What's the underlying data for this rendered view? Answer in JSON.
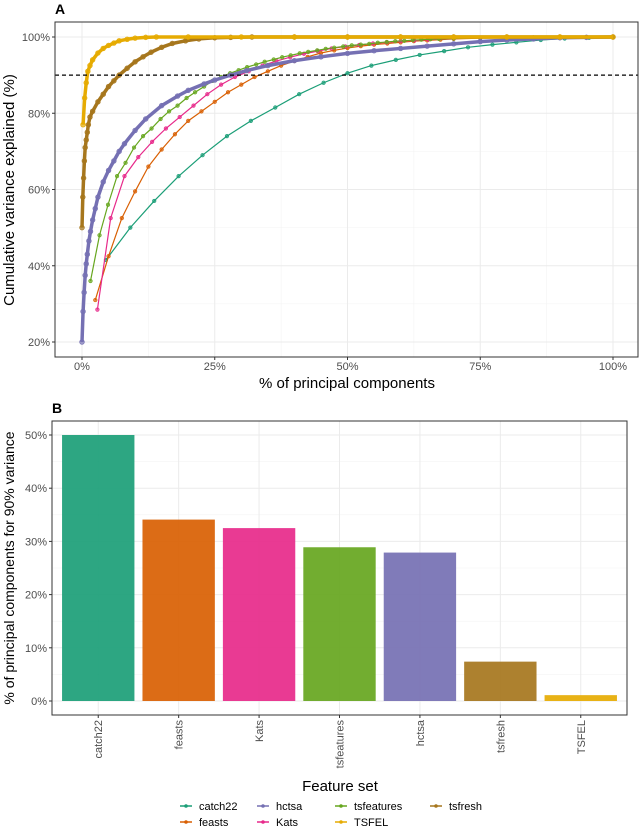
{
  "colors": {
    "catch22": "#1B9E77",
    "feasts": "#D95F02",
    "hctsa": "#7570B3",
    "Kats": "#E7298A",
    "tsfeatures": "#66A61E",
    "TSFEL": "#E6AB02",
    "tsfresh": "#A6761D"
  },
  "legend": {
    "entries": [
      "catch22",
      "feasts",
      "hctsa",
      "Kats",
      "tsfeatures",
      "TSFEL",
      "tsfresh"
    ]
  },
  "chart_data": [
    {
      "panel": "A",
      "type": "line",
      "xlabel": "% of principal components",
      "ylabel": "Cumulative variance explained (%)",
      "xlim": [
        0,
        100
      ],
      "ylim": [
        18,
        102
      ],
      "xticks": [
        "0%",
        "25%",
        "50%",
        "75%",
        "100%"
      ],
      "xtick_values": [
        0,
        25,
        50,
        75,
        100
      ],
      "yticks": [
        "20%",
        "40%",
        "60%",
        "80%",
        "100%"
      ],
      "ytick_values": [
        20,
        40,
        60,
        80,
        100
      ],
      "reference_line": {
        "y": 90,
        "style": "dashed"
      },
      "grid": true,
      "series": [
        {
          "name": "catch22",
          "points": [
            [
              4.5,
              41.5
            ],
            [
              9.1,
              50
            ],
            [
              13.6,
              57
            ],
            [
              18.2,
              63.5
            ],
            [
              22.7,
              69
            ],
            [
              27.3,
              74
            ],
            [
              31.8,
              78
            ],
            [
              36.4,
              81.5
            ],
            [
              40.9,
              85
            ],
            [
              45.5,
              88
            ],
            [
              50,
              90.5
            ],
            [
              54.5,
              92.5
            ],
            [
              59.1,
              94
            ],
            [
              63.6,
              95.3
            ],
            [
              68.2,
              96.3
            ],
            [
              72.7,
              97.3
            ],
            [
              77.3,
              98
            ],
            [
              81.8,
              98.6
            ],
            [
              86.4,
              99.2
            ],
            [
              90.9,
              99.6
            ],
            [
              95.5,
              99.8
            ],
            [
              100,
              100
            ]
          ]
        },
        {
          "name": "feasts",
          "points": [
            [
              2.5,
              31
            ],
            [
              5,
              42.5
            ],
            [
              7.5,
              52.5
            ],
            [
              10,
              59.5
            ],
            [
              12.5,
              66
            ],
            [
              15,
              70.5
            ],
            [
              17.5,
              74.5
            ],
            [
              20,
              78
            ],
            [
              22.5,
              80.5
            ],
            [
              25,
              83
            ],
            [
              27.5,
              85.5
            ],
            [
              30,
              87.5
            ],
            [
              32.5,
              89.5
            ],
            [
              35,
              91
            ],
            [
              37.5,
              92.5
            ],
            [
              40,
              93.7
            ],
            [
              42.5,
              94.8
            ],
            [
              45,
              95.8
            ],
            [
              47.5,
              96.5
            ],
            [
              50,
              97.1
            ],
            [
              52.5,
              97.6
            ],
            [
              55,
              98
            ],
            [
              57.5,
              98.3
            ],
            [
              60,
              98.6
            ],
            [
              62.5,
              98.9
            ],
            [
              65,
              99.1
            ],
            [
              67.5,
              99.3
            ],
            [
              70,
              99.5
            ],
            [
              75,
              99.7
            ],
            [
              80,
              99.8
            ],
            [
              85,
              99.9
            ],
            [
              90,
              100
            ],
            [
              95,
              100
            ],
            [
              100,
              100
            ]
          ]
        },
        {
          "name": "Kats",
          "points": [
            [
              2.9,
              28.5
            ],
            [
              5.4,
              52.5
            ],
            [
              8,
              63.5
            ],
            [
              10.6,
              68.5
            ],
            [
              13.2,
              72.5
            ],
            [
              15.8,
              76
            ],
            [
              18.4,
              79
            ],
            [
              21,
              82
            ],
            [
              23.6,
              85
            ],
            [
              26.2,
              87.5
            ],
            [
              28.8,
              89.5
            ],
            [
              31.4,
              91
            ],
            [
              34,
              92.5
            ],
            [
              36.6,
              93.7
            ],
            [
              39.2,
              94.7
            ],
            [
              41.8,
              95.6
            ],
            [
              44.4,
              96.3
            ],
            [
              47,
              97
            ],
            [
              49.6,
              97.5
            ],
            [
              52.2,
              97.9
            ],
            [
              54.8,
              98.3
            ],
            [
              57.4,
              98.6
            ],
            [
              60,
              98.9
            ],
            [
              62.6,
              99.1
            ],
            [
              65.2,
              99.3
            ],
            [
              70,
              99.6
            ],
            [
              75,
              99.8
            ],
            [
              80,
              99.9
            ],
            [
              90,
              100
            ],
            [
              100,
              100
            ]
          ]
        },
        {
          "name": "tsfeatures",
          "points": [
            [
              1.6,
              36
            ],
            [
              3.3,
              48
            ],
            [
              4.9,
              56
            ],
            [
              6.6,
              63.5
            ],
            [
              8.2,
              67
            ],
            [
              9.8,
              71
            ],
            [
              11.5,
              74
            ],
            [
              13.1,
              76
            ],
            [
              14.8,
              78.5
            ],
            [
              16.4,
              80.5
            ],
            [
              18,
              82
            ],
            [
              19.7,
              84
            ],
            [
              21.3,
              85.5
            ],
            [
              23,
              87
            ],
            [
              24.6,
              88.5
            ],
            [
              26.2,
              89.5
            ],
            [
              27.9,
              90.5
            ],
            [
              29.5,
              91.3
            ],
            [
              31.1,
              92.1
            ],
            [
              32.8,
              92.8
            ],
            [
              34.4,
              93.5
            ],
            [
              36.1,
              94.1
            ],
            [
              37.7,
              94.7
            ],
            [
              39.3,
              95.2
            ],
            [
              41,
              95.7
            ],
            [
              42.6,
              96.1
            ],
            [
              44.3,
              96.5
            ],
            [
              45.9,
              96.9
            ],
            [
              47.5,
              97.2
            ],
            [
              49.2,
              97.5
            ],
            [
              50.8,
              97.8
            ],
            [
              52.5,
              98
            ],
            [
              54.1,
              98.2
            ],
            [
              55.7,
              98.5
            ],
            [
              57.4,
              98.7
            ],
            [
              59,
              98.9
            ],
            [
              60.7,
              99
            ],
            [
              62.3,
              99.2
            ],
            [
              63.9,
              99.3
            ],
            [
              65.6,
              99.4
            ],
            [
              67.2,
              99.5
            ],
            [
              70,
              99.6
            ],
            [
              75,
              99.8
            ],
            [
              80,
              99.9
            ],
            [
              90,
              100
            ],
            [
              100,
              100
            ]
          ]
        },
        {
          "name": "hctsa",
          "points": [
            [
              0,
              20
            ],
            [
              0.2,
              28
            ],
            [
              0.4,
              33
            ],
            [
              0.6,
              37.5
            ],
            [
              0.8,
              40.5
            ],
            [
              1,
              43
            ],
            [
              1.3,
              46.5
            ],
            [
              1.6,
              49
            ],
            [
              2,
              52
            ],
            [
              2.5,
              55
            ],
            [
              3,
              58
            ],
            [
              4,
              62
            ],
            [
              5,
              65
            ],
            [
              6,
              67.5
            ],
            [
              7,
              70
            ],
            [
              8,
              72
            ],
            [
              10,
              75.5
            ],
            [
              12,
              78.5
            ],
            [
              15,
              82
            ],
            [
              18,
              84.5
            ],
            [
              20,
              86
            ],
            [
              23,
              87.7
            ],
            [
              25,
              88.7
            ],
            [
              28,
              90
            ],
            [
              31,
              91.2
            ],
            [
              35,
              92.5
            ],
            [
              40,
              93.8
            ],
            [
              45,
              94.8
            ],
            [
              50,
              95.7
            ],
            [
              55,
              96.4
            ],
            [
              60,
              97
            ],
            [
              65,
              97.6
            ],
            [
              70,
              98.2
            ],
            [
              75,
              98.8
            ],
            [
              80,
              99.2
            ],
            [
              85,
              99.5
            ],
            [
              90,
              99.8
            ],
            [
              95,
              99.9
            ],
            [
              100,
              100
            ]
          ]
        },
        {
          "name": "tsfresh",
          "points": [
            [
              0,
              50
            ],
            [
              0.15,
              58
            ],
            [
              0.3,
              63
            ],
            [
              0.45,
              67.5
            ],
            [
              0.6,
              71
            ],
            [
              0.8,
              73
            ],
            [
              1,
              75
            ],
            [
              1.2,
              77
            ],
            [
              1.5,
              79
            ],
            [
              2,
              80.5
            ],
            [
              3,
              83
            ],
            [
              4,
              85
            ],
            [
              5,
              87
            ],
            [
              6,
              88.5
            ],
            [
              7,
              90
            ],
            [
              8.5,
              91.8
            ],
            [
              10,
              93.5
            ],
            [
              11.5,
              94.8
            ],
            [
              13,
              96
            ],
            [
              15,
              97.3
            ],
            [
              17,
              98.3
            ],
            [
              19.5,
              99
            ],
            [
              22,
              99.5
            ],
            [
              25,
              99.8
            ],
            [
              28,
              99.9
            ],
            [
              32,
              100
            ],
            [
              40,
              100
            ],
            [
              50,
              100
            ],
            [
              60,
              100
            ],
            [
              70,
              100
            ],
            [
              80,
              100
            ],
            [
              90,
              100
            ],
            [
              100,
              100
            ]
          ]
        },
        {
          "name": "TSFEL",
          "points": [
            [
              0.2,
              77
            ],
            [
              0.5,
              84
            ],
            [
              0.8,
              88
            ],
            [
              1.1,
              91
            ],
            [
              1.5,
              92.5
            ],
            [
              2,
              94
            ],
            [
              3,
              95.8
            ],
            [
              4,
              97
            ],
            [
              5,
              97.8
            ],
            [
              6,
              98.4
            ],
            [
              7,
              99
            ],
            [
              8.5,
              99.4
            ],
            [
              10,
              99.7
            ],
            [
              12,
              99.9
            ],
            [
              14,
              100
            ],
            [
              20,
              100
            ],
            [
              30,
              100
            ],
            [
              40,
              100
            ],
            [
              50,
              100
            ],
            [
              60,
              100
            ],
            [
              70,
              100
            ],
            [
              80,
              100
            ],
            [
              90,
              100
            ],
            [
              100,
              100
            ]
          ]
        }
      ]
    },
    {
      "panel": "B",
      "type": "bar",
      "xlabel": "Feature set",
      "ylabel": "% of principal components for 90% variance",
      "categories": [
        "catch22",
        "feasts",
        "Kats",
        "tsfeatures",
        "hctsa",
        "tsfresh",
        "TSFEL"
      ],
      "values": [
        50.0,
        34.1,
        32.5,
        28.9,
        27.9,
        7.4,
        1.1
      ],
      "ylim": [
        0,
        52
      ],
      "yticks": [
        "0%",
        "10%",
        "20%",
        "30%",
        "40%",
        "50%"
      ],
      "ytick_values": [
        0,
        10,
        20,
        30,
        40,
        50
      ],
      "grid": true,
      "legend": "bottom"
    }
  ]
}
